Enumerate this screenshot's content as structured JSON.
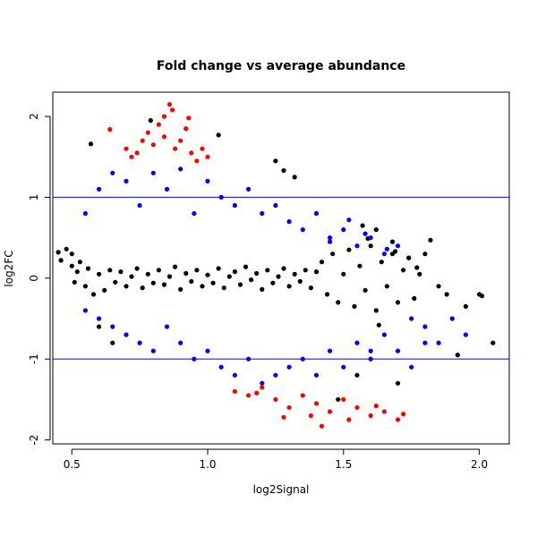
{
  "chart_data": {
    "type": "scatter",
    "title": "Fold change vs average abundance",
    "xlabel": "log2Signal",
    "ylabel": "log2FC",
    "xlim": [
      0.43,
      2.11
    ],
    "ylim": [
      -2.05,
      2.3
    ],
    "x_ticks": [
      0.5,
      1.0,
      1.5,
      2.0
    ],
    "x_tick_labels": [
      "0.5",
      "1.0",
      "1.5",
      "2.0"
    ],
    "y_ticks": [
      -2,
      -1,
      0,
      1,
      2
    ],
    "y_tick_labels": [
      "-2",
      "-1",
      "0",
      "1",
      "2"
    ],
    "hlines": [
      {
        "y": 1,
        "color": "#0000ff"
      },
      {
        "y": -1,
        "color": "#0000ff"
      }
    ],
    "grid": false,
    "legend": "none",
    "colors": {
      "significant_outside": "#ff0000",
      "significant_inside": "#0000ff",
      "not_significant": "#000000"
    },
    "series": [
      {
        "color": "#000000",
        "points": [
          [
            0.45,
            0.32
          ],
          [
            0.46,
            0.22
          ],
          [
            0.48,
            0.36
          ],
          [
            0.5,
            0.15
          ],
          [
            0.5,
            0.3
          ],
          [
            0.51,
            -0.05
          ],
          [
            0.52,
            0.08
          ],
          [
            0.53,
            0.2
          ],
          [
            0.55,
            -0.1
          ],
          [
            0.56,
            0.12
          ],
          [
            0.58,
            -0.2
          ],
          [
            0.6,
            0.05
          ],
          [
            0.62,
            -0.15
          ],
          [
            0.64,
            0.1
          ],
          [
            0.66,
            -0.05
          ],
          [
            0.68,
            0.08
          ],
          [
            0.7,
            -0.1
          ],
          [
            0.72,
            0.02
          ],
          [
            0.74,
            0.12
          ],
          [
            0.76,
            -0.12
          ],
          [
            0.78,
            0.05
          ],
          [
            0.8,
            -0.06
          ],
          [
            0.82,
            0.1
          ],
          [
            0.84,
            -0.08
          ],
          [
            0.86,
            0.02
          ],
          [
            0.88,
            0.14
          ],
          [
            0.9,
            -0.14
          ],
          [
            0.92,
            0.06
          ],
          [
            0.94,
            -0.04
          ],
          [
            0.96,
            0.1
          ],
          [
            0.98,
            -0.1
          ],
          [
            1.0,
            0.04
          ],
          [
            1.02,
            -0.06
          ],
          [
            1.04,
            0.12
          ],
          [
            1.06,
            -0.12
          ],
          [
            1.08,
            0.02
          ],
          [
            1.1,
            0.08
          ],
          [
            1.12,
            -0.08
          ],
          [
            1.14,
            0.14
          ],
          [
            1.16,
            -0.02
          ],
          [
            1.18,
            0.06
          ],
          [
            1.2,
            -0.14
          ],
          [
            1.22,
            0.1
          ],
          [
            1.24,
            -0.06
          ],
          [
            1.26,
            0.02
          ],
          [
            1.28,
            0.12
          ],
          [
            1.3,
            -0.1
          ],
          [
            1.32,
            0.05
          ],
          [
            1.34,
            -0.04
          ],
          [
            1.36,
            0.1
          ],
          [
            1.38,
            -0.12
          ],
          [
            1.4,
            0.08
          ],
          [
            1.42,
            0.2
          ],
          [
            1.44,
            -0.2
          ],
          [
            1.46,
            0.3
          ],
          [
            1.48,
            -0.3
          ],
          [
            1.5,
            0.05
          ],
          [
            1.52,
            0.35
          ],
          [
            1.54,
            -0.35
          ],
          [
            1.56,
            0.15
          ],
          [
            1.58,
            -0.15
          ],
          [
            1.6,
            0.4
          ],
          [
            1.62,
            -0.4
          ],
          [
            1.64,
            0.2
          ],
          [
            1.66,
            -0.1
          ],
          [
            1.68,
            0.3
          ],
          [
            1.7,
            -0.3
          ],
          [
            1.72,
            0.1
          ],
          [
            1.74,
            0.25
          ],
          [
            1.76,
            -0.25
          ],
          [
            1.78,
            0.05
          ],
          [
            1.8,
            0.3
          ],
          [
            1.82,
            0.47
          ],
          [
            1.85,
            -0.1
          ],
          [
            1.88,
            -0.2
          ],
          [
            1.92,
            -0.95
          ],
          [
            1.95,
            -0.35
          ],
          [
            2.0,
            -0.2
          ],
          [
            2.01,
            -0.22
          ],
          [
            2.05,
            -0.8
          ],
          [
            1.69,
            0.33
          ],
          [
            1.74,
            0.25
          ],
          [
            1.77,
            0.13
          ],
          [
            1.59,
            0.49
          ],
          [
            1.63,
            -0.58
          ],
          [
            0.57,
            1.66
          ],
          [
            0.79,
            1.95
          ],
          [
            0.92,
            1.85
          ],
          [
            1.04,
            1.77
          ],
          [
            1.25,
            1.45
          ],
          [
            1.28,
            1.33
          ],
          [
            1.32,
            1.25
          ],
          [
            1.57,
            0.65
          ],
          [
            1.62,
            0.6
          ],
          [
            1.68,
            0.45
          ],
          [
            0.6,
            -0.6
          ],
          [
            0.65,
            -0.8
          ],
          [
            1.55,
            -1.2
          ],
          [
            1.7,
            -1.3
          ],
          [
            1.48,
            -1.5
          ]
        ]
      },
      {
        "color": "#0000ff",
        "points": [
          [
            0.55,
            0.8
          ],
          [
            0.6,
            1.1
          ],
          [
            0.65,
            1.3
          ],
          [
            0.7,
            1.2
          ],
          [
            0.75,
            0.9
          ],
          [
            0.8,
            1.3
          ],
          [
            0.85,
            1.1
          ],
          [
            0.9,
            1.35
          ],
          [
            0.95,
            0.8
          ],
          [
            1.0,
            1.2
          ],
          [
            1.05,
            1.0
          ],
          [
            1.1,
            0.9
          ],
          [
            1.15,
            1.1
          ],
          [
            1.2,
            0.8
          ],
          [
            1.25,
            0.9
          ],
          [
            1.3,
            0.7
          ],
          [
            1.35,
            0.6
          ],
          [
            1.4,
            0.8
          ],
          [
            1.45,
            0.5
          ],
          [
            1.5,
            0.6
          ],
          [
            1.55,
            0.4
          ],
          [
            1.6,
            0.5
          ],
          [
            1.65,
            0.3
          ],
          [
            1.7,
            0.4
          ],
          [
            1.75,
            -0.5
          ],
          [
            1.8,
            -0.6
          ],
          [
            1.85,
            -0.8
          ],
          [
            1.9,
            -0.5
          ],
          [
            1.95,
            -0.7
          ],
          [
            1.6,
            -0.9
          ],
          [
            0.55,
            -0.4
          ],
          [
            0.6,
            -0.5
          ],
          [
            0.65,
            -0.6
          ],
          [
            0.7,
            -0.7
          ],
          [
            0.75,
            -0.8
          ],
          [
            0.8,
            -0.9
          ],
          [
            0.85,
            -0.6
          ],
          [
            0.9,
            -0.8
          ],
          [
            0.95,
            -1.0
          ],
          [
            1.0,
            -0.9
          ],
          [
            1.05,
            -1.1
          ],
          [
            1.1,
            -1.2
          ],
          [
            1.15,
            -1.0
          ],
          [
            1.2,
            -1.3
          ],
          [
            1.25,
            -1.2
          ],
          [
            1.3,
            -1.1
          ],
          [
            1.35,
            -1.0
          ],
          [
            1.4,
            -1.2
          ],
          [
            1.45,
            -0.9
          ],
          [
            1.5,
            -1.1
          ],
          [
            1.55,
            -0.8
          ],
          [
            1.6,
            -1.0
          ],
          [
            1.65,
            -0.7
          ],
          [
            1.7,
            -0.9
          ],
          [
            1.75,
            -1.1
          ],
          [
            1.8,
            -0.8
          ],
          [
            1.45,
            0.45
          ],
          [
            1.52,
            0.72
          ],
          [
            1.58,
            0.55
          ],
          [
            1.66,
            0.36
          ]
        ]
      },
      {
        "color": "#ff0000",
        "points": [
          [
            0.64,
            1.84
          ],
          [
            0.7,
            1.6
          ],
          [
            0.72,
            1.5
          ],
          [
            0.74,
            1.55
          ],
          [
            0.76,
            1.7
          ],
          [
            0.78,
            1.8
          ],
          [
            0.8,
            1.65
          ],
          [
            0.82,
            1.9
          ],
          [
            0.84,
            1.75
          ],
          [
            0.86,
            2.15
          ],
          [
            0.88,
            1.6
          ],
          [
            0.9,
            1.7
          ],
          [
            0.92,
            1.85
          ],
          [
            0.94,
            1.55
          ],
          [
            0.96,
            1.45
          ],
          [
            0.98,
            1.6
          ],
          [
            1.0,
            1.5
          ],
          [
            0.87,
            2.08
          ],
          [
            0.84,
            2.0
          ],
          [
            0.93,
            1.98
          ],
          [
            1.1,
            -1.4
          ],
          [
            1.15,
            -1.45
          ],
          [
            1.2,
            -1.35
          ],
          [
            1.25,
            -1.5
          ],
          [
            1.3,
            -1.6
          ],
          [
            1.35,
            -1.45
          ],
          [
            1.4,
            -1.55
          ],
          [
            1.45,
            -1.65
          ],
          [
            1.5,
            -1.5
          ],
          [
            1.55,
            -1.6
          ],
          [
            1.6,
            -1.7
          ],
          [
            1.65,
            -1.65
          ],
          [
            1.7,
            -1.75
          ],
          [
            1.72,
            -1.68
          ],
          [
            1.42,
            -1.83
          ],
          [
            1.38,
            -1.7
          ],
          [
            1.52,
            -1.75
          ],
          [
            1.28,
            -1.72
          ],
          [
            1.18,
            -1.42
          ],
          [
            1.62,
            -1.58
          ]
        ]
      }
    ]
  }
}
